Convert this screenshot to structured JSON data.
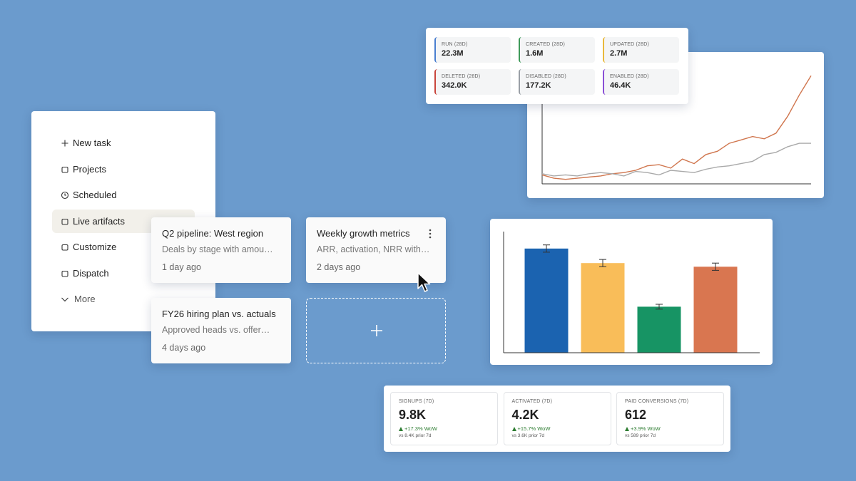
{
  "sidebar": {
    "items": [
      "New task",
      "Projects",
      "Scheduled",
      "Live artifacts",
      "Customize",
      "Dispatch",
      "More"
    ]
  },
  "artifacts": [
    {
      "title": "Q2 pipeline: West region",
      "description": "Deals by stage with amou…",
      "updated": "1 day ago"
    },
    {
      "title": "Weekly growth metrics",
      "description": "ARR, activation, NRR with…",
      "updated": "2 days ago"
    },
    {
      "title": "FY26 hiring plan vs. actuals",
      "description": "Approved heads vs. offer…",
      "updated": "4 days ago"
    }
  ],
  "stats": [
    {
      "label": "RUN (28D)",
      "value": "22.3M",
      "color": "#4a7fd0"
    },
    {
      "label": "CREATED (28D)",
      "value": "1.6M",
      "color": "#3f9a5a"
    },
    {
      "label": "UPDATED (28D)",
      "value": "2.7M",
      "color": "#e9b93c"
    },
    {
      "label": "DELETED (28D)",
      "value": "342.0K",
      "color": "#c9463d"
    },
    {
      "label": "DISABLED (28D)",
      "value": "177.2K",
      "color": "#9aa0a6"
    },
    {
      "label": "ENABLED (28D)",
      "value": "46.4K",
      "color": "#8a4fd6"
    }
  ],
  "metrics": [
    {
      "label": "SIGNUPS (7D)",
      "value": "9.8K",
      "change": "+17.3% WoW",
      "comparison": "vs 8.4K prior 7d"
    },
    {
      "label": "ACTIVATED (7D)",
      "value": "4.2K",
      "change": "+15.7% WoW",
      "comparison": "vs 3.6K prior 7d"
    },
    {
      "label": "PAID CONVERSIONS (7D)",
      "value": "612",
      "change": "+3.9% WoW",
      "comparison": "vs 589 prior 7d"
    }
  ],
  "chart_data": [
    {
      "type": "line",
      "x": [
        0,
        1,
        2,
        3,
        4,
        5,
        6,
        7,
        8,
        9,
        10,
        11,
        12,
        13,
        14,
        15,
        16,
        17,
        18,
        19,
        20,
        21,
        22,
        23
      ],
      "xlim": [
        0,
        23
      ],
      "ylim": [
        0,
        100
      ],
      "series": [
        {
          "color": "#d0764e",
          "values": [
            8,
            5,
            4,
            5,
            6,
            7,
            9,
            10,
            12,
            16,
            17,
            14,
            22,
            18,
            26,
            29,
            36,
            39,
            42,
            40,
            45,
            60,
            79,
            96
          ]
        },
        {
          "color": "#a9a9a9",
          "values": [
            9,
            7,
            8,
            7,
            9,
            10,
            9,
            7,
            11,
            10,
            8,
            12,
            11,
            10,
            13,
            15,
            16,
            18,
            20,
            26,
            28,
            33,
            36,
            36
          ]
        }
      ]
    },
    {
      "type": "bar",
      "ylim": [
        0,
        100
      ],
      "values": [
        86,
        74,
        38,
        71
      ],
      "errors": [
        3,
        3,
        2,
        3
      ],
      "colors": [
        "#1b63b0",
        "#f9bd59",
        "#179464",
        "#d97650"
      ]
    }
  ]
}
